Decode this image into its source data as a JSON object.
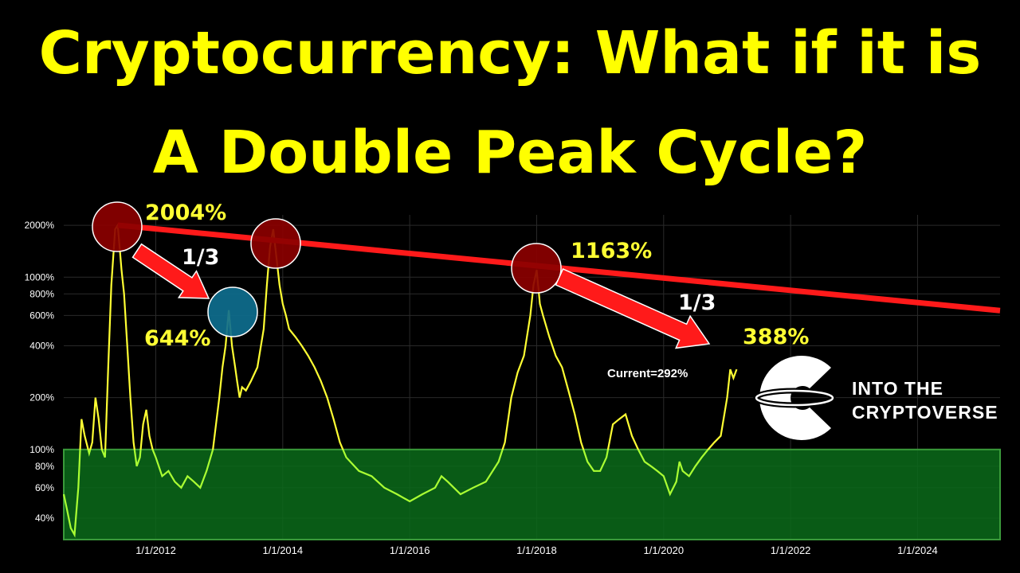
{
  "title_line1": "Cryptocurrency: What if it is",
  "title_line2": "A Double Peak Cycle?",
  "colors": {
    "background": "#000000",
    "title": "#ffff00",
    "price_line": "#ffff33",
    "below_100_line": "#aaff33",
    "green_zone": "#0b6b1a",
    "trendline": "#ff1a1a",
    "arrow": "#ff1a1a",
    "peak_circle": "#8b0000",
    "low_peak_circle": "#0e6e8e"
  },
  "annotations": {
    "peak1": "2004%",
    "secondary_peak": "644%",
    "ratio1": "1/3",
    "peak3": "1163%",
    "ratio2": "1/3",
    "projected": "388%",
    "current": "Current=292%"
  },
  "logo": {
    "line1": "INTO THE",
    "line2": "CRYPTOVERSE"
  },
  "chart_data": {
    "type": "line",
    "y_scale": "log",
    "ylim": [
      30,
      2300
    ],
    "y_ticks": [
      {
        "value": 2000,
        "label": "2000%"
      },
      {
        "value": 1000,
        "label": "1000%"
      },
      {
        "value": 800,
        "label": "800%"
      },
      {
        "value": 600,
        "label": "600%"
      },
      {
        "value": 400,
        "label": "400%"
      },
      {
        "value": 200,
        "label": "200%"
      },
      {
        "value": 100,
        "label": "100%"
      },
      {
        "value": 80,
        "label": "80%"
      },
      {
        "value": 60,
        "label": "60%"
      },
      {
        "value": 40,
        "label": "40%"
      }
    ],
    "xlim": [
      2010.55,
      2025.3
    ],
    "x_ticks": [
      {
        "value": 2012,
        "label": "1/1/2012"
      },
      {
        "value": 2014,
        "label": "1/1/2014"
      },
      {
        "value": 2016,
        "label": "1/1/2016"
      },
      {
        "value": 2018,
        "label": "1/1/2018"
      },
      {
        "value": 2020,
        "label": "1/1/2020"
      },
      {
        "value": 2022,
        "label": "1/1/2022"
      },
      {
        "value": 2024,
        "label": "1/1/2024"
      }
    ],
    "green_zone_max": 100,
    "series": [
      {
        "x": [
          2010.55,
          2010.6,
          2010.66,
          2010.72,
          2010.78,
          2010.83,
          2010.88,
          2010.95,
          2011.0,
          2011.05,
          2011.1,
          2011.15,
          2011.2,
          2011.25,
          2011.3,
          2011.36,
          2011.4,
          2011.43,
          2011.46,
          2011.5,
          2011.55,
          2011.6,
          2011.65,
          2011.7,
          2011.75,
          2011.8,
          2011.85,
          2011.9,
          2011.95,
          2012.0,
          2012.1,
          2012.2,
          2012.3,
          2012.4,
          2012.5,
          2012.6,
          2012.7,
          2012.8,
          2012.9,
          2013.0,
          2013.05,
          2013.1,
          2013.15,
          2013.2,
          2013.25,
          2013.28,
          2013.32,
          2013.36,
          2013.42,
          2013.5,
          2013.6,
          2013.7,
          2013.75,
          2013.8,
          2013.85,
          2013.9,
          2013.95,
          2014.0,
          2014.05,
          2014.1,
          2014.2,
          2014.3,
          2014.4,
          2014.5,
          2014.6,
          2014.7,
          2014.8,
          2014.9,
          2015.0,
          2015.2,
          2015.4,
          2015.6,
          2015.8,
          2016.0,
          2016.2,
          2016.4,
          2016.5,
          2016.6,
          2016.8,
          2017.0,
          2017.2,
          2017.4,
          2017.5,
          2017.6,
          2017.7,
          2017.8,
          2017.9,
          2017.95,
          2018.0,
          2018.05,
          2018.1,
          2018.2,
          2018.3,
          2018.4,
          2018.5,
          2018.6,
          2018.7,
          2018.8,
          2018.9,
          2019.0,
          2019.1,
          2019.2,
          2019.3,
          2019.4,
          2019.5,
          2019.6,
          2019.7,
          2019.8,
          2019.9,
          2020.0,
          2020.1,
          2020.2,
          2020.25,
          2020.3,
          2020.4,
          2020.5,
          2020.6,
          2020.7,
          2020.8,
          2020.9,
          2021.0,
          2021.05,
          2021.1,
          2021.15
        ],
        "values": [
          55,
          45,
          35,
          32,
          60,
          150,
          120,
          95,
          110,
          200,
          150,
          100,
          90,
          300,
          900,
          1900,
          2004,
          1500,
          1100,
          800,
          400,
          200,
          110,
          80,
          90,
          140,
          170,
          120,
          100,
          90,
          70,
          75,
          65,
          60,
          70,
          65,
          60,
          75,
          100,
          200,
          300,
          400,
          644,
          400,
          300,
          250,
          200,
          230,
          220,
          250,
          300,
          500,
          900,
          1500,
          1900,
          1300,
          900,
          700,
          600,
          500,
          450,
          400,
          350,
          300,
          250,
          200,
          150,
          110,
          90,
          75,
          70,
          60,
          55,
          50,
          55,
          60,
          70,
          65,
          55,
          60,
          65,
          85,
          110,
          200,
          280,
          350,
          600,
          900,
          1100,
          700,
          600,
          450,
          350,
          300,
          220,
          160,
          110,
          85,
          75,
          75,
          90,
          140,
          150,
          160,
          120,
          100,
          85,
          80,
          75,
          70,
          55,
          65,
          85,
          75,
          70,
          80,
          90,
          100,
          110,
          120,
          200,
          292,
          260,
          292
        ]
      }
    ],
    "trendline": {
      "x": [
        2011.4,
        2025.3
      ],
      "values": [
        2004,
        640
      ]
    }
  }
}
